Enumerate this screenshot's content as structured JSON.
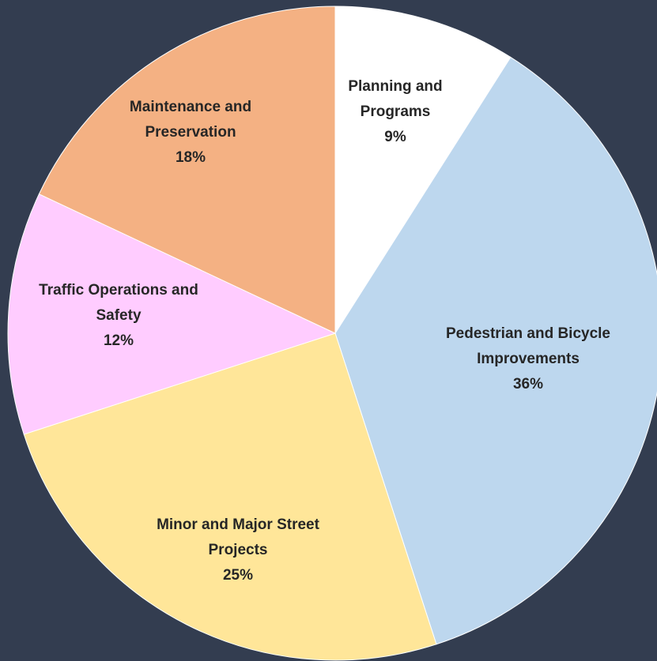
{
  "chart_data": {
    "type": "pie",
    "categories": [
      "Planning and Programs",
      "Pedestrian and Bicycle Improvements",
      "Minor and Major Street Projects",
      "Traffic Operations and Safety",
      "Maintenance and Preservation"
    ],
    "values": [
      9,
      36,
      25,
      12,
      18
    ],
    "value_labels": [
      "9%",
      "36%",
      "25%",
      "12%",
      "18%"
    ],
    "colors": [
      "#ffffff",
      "#bdd7ee",
      "#ffe699",
      "#ffccff",
      "#f4b183"
    ]
  }
}
